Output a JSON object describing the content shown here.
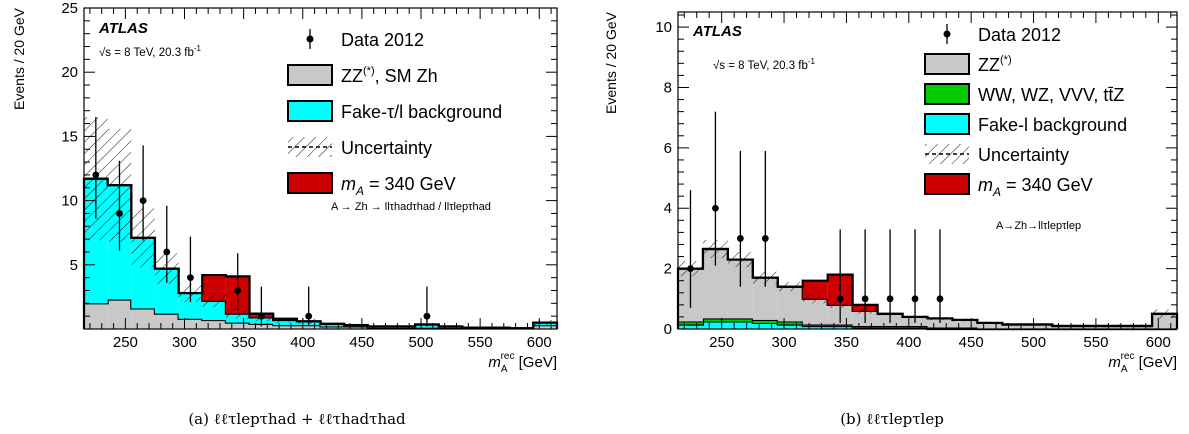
{
  "chart_data": [
    {
      "type": "histogram",
      "caption": "(a) ℓℓτlepτhad + ℓℓτhadτhad",
      "ylabel": "Events / 20 GeV",
      "xlabel_main": "m",
      "xlabel_sub": "A",
      "xlabel_sup": "rec",
      "xlabel_unit": "[GeV]",
      "xlim": [
        215,
        615
      ],
      "ylim": [
        0,
        25
      ],
      "xticks": [
        250,
        300,
        350,
        400,
        450,
        500,
        550,
        600
      ],
      "yticks": [
        5,
        10,
        15,
        20,
        25
      ],
      "atlas_label": "ATLAS",
      "energy_label": "√s = 8 TeV, 20.3 fb",
      "energy_sup": "-1",
      "channel_label": "A → Zh → llτhadτhad / llτlepτhad",
      "legend": [
        {
          "key": "data",
          "label": "Data 2012"
        },
        {
          "key": "zz",
          "label": "ZZ(*), SM Zh",
          "color": "#c8c8c8"
        },
        {
          "key": "fake",
          "label": "Fake-τ/l background",
          "color": "#00ffff"
        },
        {
          "key": "unc",
          "label": "Uncertainty"
        },
        {
          "key": "signal",
          "label": "mA = 340 GeV",
          "color": "#cc0000"
        }
      ],
      "bin_edges": [
        215,
        235,
        255,
        275,
        295,
        315,
        335,
        355,
        375,
        395,
        415,
        435,
        455,
        475,
        495,
        515,
        535,
        555,
        575,
        595,
        615
      ],
      "series": [
        {
          "key": "zz",
          "values": [
            2.0,
            2.3,
            1.6,
            1.2,
            0.8,
            0.7,
            0.5,
            0.4,
            0.3,
            0.3,
            0.2,
            0.2,
            0.1,
            0.1,
            0.1,
            0.1,
            0.05,
            0.05,
            0.05,
            0.3
          ]
        },
        {
          "key": "fake",
          "values": [
            9.7,
            8.9,
            5.5,
            3.5,
            2.0,
            1.5,
            0.7,
            0.5,
            0.4,
            0.3,
            0.2,
            0.1,
            0.1,
            0.1,
            0.25,
            0.1,
            0.05,
            0.05,
            0.0,
            0.2
          ]
        },
        {
          "key": "signal",
          "values": [
            0,
            0,
            0,
            0,
            0,
            2.0,
            2.9,
            0.3,
            0.1,
            0,
            0,
            0,
            0,
            0,
            0,
            0,
            0,
            0,
            0,
            0
          ]
        }
      ],
      "uncertainty": [
        4.8,
        4.4,
        2.3,
        1.2,
        0.7,
        0.5,
        0.4,
        0.3,
        0.2,
        0.2,
        0.1,
        0.1,
        0.1,
        0.1,
        0.1,
        0.05,
        0.05,
        0.05,
        0.05,
        0.2
      ],
      "data_points": [
        {
          "x": 225,
          "y": 12,
          "lo": 3.4,
          "hi": 4.5
        },
        {
          "x": 245,
          "y": 9,
          "lo": 2.9,
          "hi": 4.1
        },
        {
          "x": 265,
          "y": 10,
          "lo": 3.1,
          "hi": 4.3
        },
        {
          "x": 285,
          "y": 6,
          "lo": 2.4,
          "hi": 3.6
        },
        {
          "x": 305,
          "y": 4,
          "lo": 1.9,
          "hi": 3.2
        },
        {
          "x": 345,
          "y": 3,
          "lo": 1.6,
          "hi": 2.9
        },
        {
          "x": 365,
          "y": 1,
          "lo": 0.8,
          "hi": 2.3
        },
        {
          "x": 405,
          "y": 1,
          "lo": 0.8,
          "hi": 2.3
        },
        {
          "x": 505,
          "y": 1,
          "lo": 0.8,
          "hi": 2.3
        }
      ]
    },
    {
      "type": "histogram",
      "caption": "(b) ℓℓτlepτlep",
      "ylabel": "Events / 20 GeV",
      "xlabel_main": "m",
      "xlabel_sub": "A",
      "xlabel_sup": "rec",
      "xlabel_unit": "[GeV]",
      "xlim": [
        215,
        615
      ],
      "ylim": [
        0,
        10.5
      ],
      "xticks": [
        250,
        300,
        350,
        400,
        450,
        500,
        550,
        600
      ],
      "yticks": [
        0,
        2,
        4,
        6,
        8,
        10
      ],
      "atlas_label": "ATLAS",
      "energy_label": "√s = 8 TeV, 20.3 fb",
      "energy_sup": "-1",
      "channel_label": "A→Zh→llτlepτlep",
      "legend": [
        {
          "key": "data",
          "label": "Data 2012"
        },
        {
          "key": "zz",
          "label": "ZZ(*)",
          "color": "#c8c8c8"
        },
        {
          "key": "ww",
          "label": "WW, WZ, VVV, tt̄Z",
          "color": "#00cc00"
        },
        {
          "key": "fake",
          "label": "Fake-l background",
          "color": "#00ffff"
        },
        {
          "key": "unc",
          "label": "Uncertainty"
        },
        {
          "key": "signal",
          "label": "mA = 340 GeV",
          "color": "#cc0000"
        }
      ],
      "bin_edges": [
        215,
        235,
        255,
        275,
        295,
        315,
        335,
        355,
        375,
        395,
        415,
        435,
        455,
        475,
        495,
        515,
        535,
        555,
        575,
        595,
        615
      ],
      "series": [
        {
          "key": "fake",
          "values": [
            0.15,
            0.25,
            0.25,
            0.2,
            0.15,
            0.1,
            0.1,
            0.05,
            0.05,
            0.05,
            0.0,
            0.0,
            0.0,
            0.0,
            0.0,
            0.0,
            0.0,
            0.0,
            0.0,
            0.0
          ]
        },
        {
          "key": "ww",
          "values": [
            0.1,
            0.1,
            0.1,
            0.1,
            0.1,
            0.05,
            0.05,
            0.05,
            0.05,
            0.05,
            0.05,
            0.05,
            0.0,
            0.0,
            0.0,
            0.0,
            0.0,
            0.0,
            0.0,
            0.0
          ]
        },
        {
          "key": "zz",
          "values": [
            1.75,
            2.3,
            1.95,
            1.4,
            1.15,
            0.85,
            0.65,
            0.5,
            0.4,
            0.3,
            0.3,
            0.25,
            0.2,
            0.15,
            0.15,
            0.1,
            0.1,
            0.1,
            0.1,
            0.5
          ]
        },
        {
          "key": "signal",
          "values": [
            0,
            0,
            0,
            0,
            0,
            0.6,
            1.0,
            0.2,
            0,
            0,
            0,
            0,
            0,
            0,
            0,
            0,
            0,
            0,
            0,
            0
          ]
        }
      ],
      "uncertainty": [
        0.25,
        0.3,
        0.25,
        0.2,
        0.15,
        0.15,
        0.1,
        0.1,
        0.05,
        0.05,
        0.05,
        0.05,
        0.05,
        0.05,
        0.05,
        0.05,
        0.05,
        0.05,
        0.05,
        0.15
      ],
      "data_points": [
        {
          "x": 225,
          "y": 2,
          "lo": 1.3,
          "hi": 2.6
        },
        {
          "x": 245,
          "y": 4,
          "lo": 1.9,
          "hi": 3.2
        },
        {
          "x": 265,
          "y": 3,
          "lo": 1.6,
          "hi": 2.9
        },
        {
          "x": 285,
          "y": 3,
          "lo": 1.6,
          "hi": 2.9
        },
        {
          "x": 345,
          "y": 1,
          "lo": 0.8,
          "hi": 2.3
        },
        {
          "x": 365,
          "y": 1,
          "lo": 0.8,
          "hi": 2.3
        },
        {
          "x": 385,
          "y": 1,
          "lo": 0.8,
          "hi": 2.3
        },
        {
          "x": 405,
          "y": 1,
          "lo": 0.8,
          "hi": 2.3
        },
        {
          "x": 425,
          "y": 1,
          "lo": 0.8,
          "hi": 2.3
        }
      ]
    }
  ]
}
